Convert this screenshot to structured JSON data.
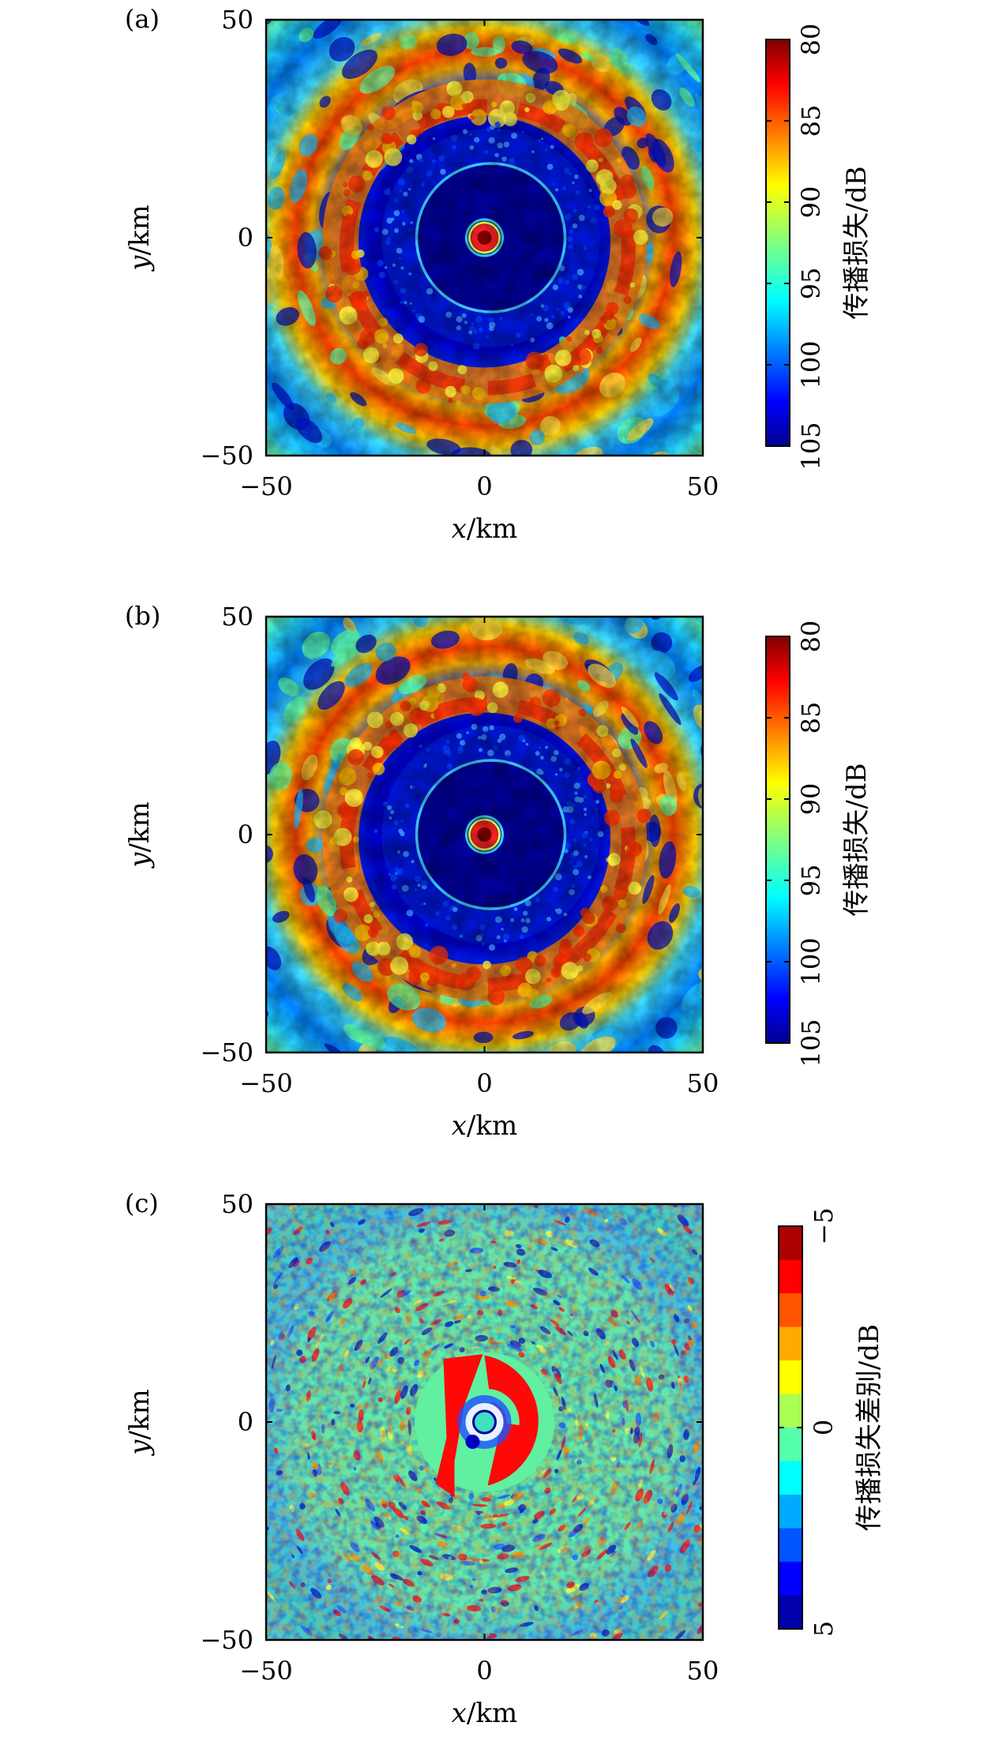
{
  "chart_data": [
    {
      "type": "heatmap",
      "panel_label": "(a)",
      "x_var": "x",
      "y_var": "y",
      "unit": "/km",
      "xlim": [
        -50,
        50
      ],
      "ylim": [
        -50,
        50
      ],
      "xticks": [
        "−50",
        "0",
        "50"
      ],
      "yticks": [
        "−50",
        "0",
        "50"
      ],
      "colorbar": {
        "label": "传播损失/dB",
        "range": [
          80,
          105
        ],
        "reversed": true,
        "ticks": [
          "80",
          "85",
          "90",
          "95",
          "100",
          "105"
        ],
        "colormap": "jet"
      },
      "features": {
        "source_at": [
          0,
          0
        ],
        "inner_ring_radius_km": 17,
        "shadow_zone_radius_km": 17,
        "convergence_ring_radius_km": [
          28,
          38
        ],
        "background_level_dB": 96
      }
    },
    {
      "type": "heatmap",
      "panel_label": "(b)",
      "x_var": "x",
      "y_var": "y",
      "unit": "/km",
      "xlim": [
        -50,
        50
      ],
      "ylim": [
        -50,
        50
      ],
      "xticks": [
        "−50",
        "0",
        "50"
      ],
      "yticks": [
        "−50",
        "0",
        "50"
      ],
      "colorbar": {
        "label": "传播损失/dB",
        "range": [
          80,
          105
        ],
        "reversed": true,
        "ticks": [
          "80",
          "85",
          "90",
          "95",
          "100",
          "105"
        ],
        "colormap": "jet"
      },
      "features": {
        "source_at": [
          0,
          0
        ],
        "inner_ring_radius_km": 17,
        "shadow_zone_radius_km": 17,
        "convergence_ring_radius_km": [
          28,
          38
        ],
        "background_level_dB": 96
      }
    },
    {
      "type": "heatmap",
      "panel_label": "(c)",
      "x_var": "x",
      "y_var": "y",
      "unit": "/km",
      "xlim": [
        -50,
        50
      ],
      "ylim": [
        -50,
        50
      ],
      "xticks": [
        "−50",
        "0",
        "50"
      ],
      "yticks": [
        "−50",
        "0",
        "50"
      ],
      "colorbar": {
        "label": "传播损失差别/dB",
        "range": [
          -5,
          5
        ],
        "reversed": false,
        "ticks": [
          "−5",
          "0",
          "5"
        ],
        "colormap": "jet-discrete-12"
      },
      "features": {
        "central_disk_radius_km": 16,
        "central_level_dB": 0.3,
        "red_sectors_dB": 5
      }
    }
  ]
}
